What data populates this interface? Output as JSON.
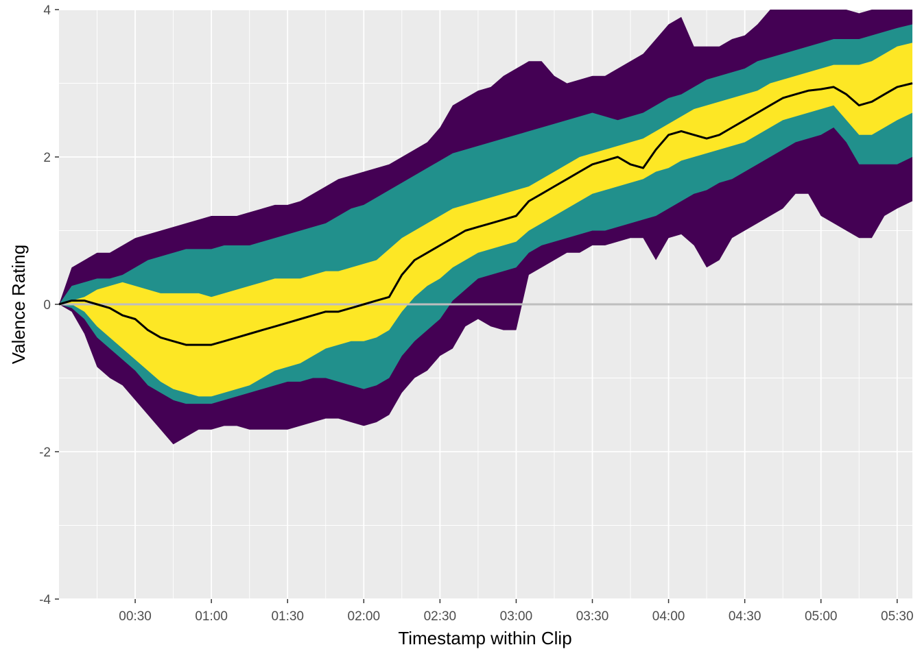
{
  "chart_data": {
    "type": "area",
    "xlabel": "Timestamp within Clip",
    "ylabel": "Valence Rating",
    "x_unit": "seconds",
    "xlim": [
      0,
      336
    ],
    "ylim": [
      -4,
      4
    ],
    "x_ticks": [
      {
        "value": 30,
        "label": "00:30"
      },
      {
        "value": 60,
        "label": "01:00"
      },
      {
        "value": 90,
        "label": "01:30"
      },
      {
        "value": 120,
        "label": "02:00"
      },
      {
        "value": 150,
        "label": "02:30"
      },
      {
        "value": 180,
        "label": "03:00"
      },
      {
        "value": 210,
        "label": "03:30"
      },
      {
        "value": 240,
        "label": "04:00"
      },
      {
        "value": 270,
        "label": "04:30"
      },
      {
        "value": 300,
        "label": "05:00"
      },
      {
        "value": 330,
        "label": "05:30"
      }
    ],
    "y_ticks": [
      {
        "value": -4,
        "label": "-4"
      },
      {
        "value": -2,
        "label": "-2"
      },
      {
        "value": 0,
        "label": "0"
      },
      {
        "value": 2,
        "label": "2"
      },
      {
        "value": 4,
        "label": "4"
      }
    ],
    "grid": true,
    "reference_line": {
      "y": 0,
      "color": "#bebebe"
    },
    "x": [
      0,
      5,
      10,
      15,
      20,
      25,
      30,
      35,
      40,
      45,
      50,
      55,
      60,
      65,
      70,
      75,
      80,
      85,
      90,
      95,
      100,
      105,
      110,
      115,
      120,
      125,
      130,
      135,
      140,
      145,
      150,
      155,
      160,
      165,
      170,
      175,
      180,
      185,
      190,
      195,
      200,
      205,
      210,
      215,
      220,
      225,
      230,
      235,
      240,
      245,
      250,
      255,
      260,
      265,
      270,
      275,
      280,
      285,
      290,
      295,
      300,
      305,
      310,
      315,
      320,
      325,
      330,
      336
    ],
    "bands": [
      {
        "name": "outer",
        "color": "#440154",
        "upper": [
          0,
          0.5,
          0.6,
          0.7,
          0.7,
          0.8,
          0.9,
          0.95,
          1.0,
          1.05,
          1.1,
          1.15,
          1.2,
          1.2,
          1.2,
          1.25,
          1.3,
          1.35,
          1.35,
          1.4,
          1.5,
          1.6,
          1.7,
          1.75,
          1.8,
          1.85,
          1.9,
          2.0,
          2.1,
          2.2,
          2.4,
          2.7,
          2.8,
          2.9,
          2.95,
          3.1,
          3.2,
          3.3,
          3.3,
          3.1,
          3.0,
          3.05,
          3.1,
          3.1,
          3.2,
          3.3,
          3.4,
          3.6,
          3.8,
          3.9,
          3.5,
          3.5,
          3.5,
          3.6,
          3.65,
          3.8,
          4.0,
          4.0,
          4.0,
          4.0,
          4.0,
          4.0,
          4.0,
          3.95,
          4.0,
          4.0,
          4.0,
          4.0
        ],
        "lower": [
          0,
          -0.1,
          -0.4,
          -0.85,
          -1.0,
          -1.1,
          -1.3,
          -1.5,
          -1.7,
          -1.9,
          -1.8,
          -1.7,
          -1.7,
          -1.65,
          -1.65,
          -1.7,
          -1.7,
          -1.7,
          -1.7,
          -1.65,
          -1.6,
          -1.55,
          -1.55,
          -1.6,
          -1.65,
          -1.6,
          -1.5,
          -1.2,
          -1.0,
          -0.9,
          -0.7,
          -0.6,
          -0.3,
          -0.2,
          -0.3,
          -0.35,
          -0.35,
          0.4,
          0.5,
          0.6,
          0.7,
          0.7,
          0.8,
          0.8,
          0.85,
          0.9,
          0.9,
          0.6,
          0.9,
          0.95,
          0.8,
          0.5,
          0.6,
          0.9,
          1.0,
          1.1,
          1.2,
          1.3,
          1.5,
          1.5,
          1.2,
          1.1,
          1.0,
          0.9,
          0.9,
          1.2,
          1.3,
          1.4
        ]
      },
      {
        "name": "middle",
        "color": "#21908c",
        "upper": [
          0,
          0.25,
          0.3,
          0.35,
          0.35,
          0.4,
          0.5,
          0.6,
          0.65,
          0.7,
          0.75,
          0.75,
          0.75,
          0.8,
          0.8,
          0.8,
          0.85,
          0.9,
          0.95,
          1.0,
          1.05,
          1.1,
          1.2,
          1.3,
          1.35,
          1.45,
          1.55,
          1.65,
          1.75,
          1.85,
          1.95,
          2.05,
          2.1,
          2.15,
          2.2,
          2.25,
          2.3,
          2.35,
          2.4,
          2.45,
          2.5,
          2.55,
          2.6,
          2.55,
          2.5,
          2.55,
          2.6,
          2.7,
          2.8,
          2.85,
          2.95,
          3.05,
          3.1,
          3.15,
          3.2,
          3.3,
          3.35,
          3.4,
          3.45,
          3.5,
          3.55,
          3.6,
          3.6,
          3.6,
          3.65,
          3.7,
          3.75,
          3.8
        ],
        "lower": [
          0,
          -0.05,
          -0.2,
          -0.45,
          -0.6,
          -0.75,
          -0.9,
          -1.1,
          -1.2,
          -1.3,
          -1.35,
          -1.35,
          -1.35,
          -1.3,
          -1.25,
          -1.2,
          -1.15,
          -1.1,
          -1.05,
          -1.05,
          -1.0,
          -1.0,
          -1.05,
          -1.1,
          -1.15,
          -1.1,
          -1.0,
          -0.7,
          -0.5,
          -0.35,
          -0.2,
          0.05,
          0.2,
          0.35,
          0.4,
          0.45,
          0.5,
          0.7,
          0.8,
          0.85,
          0.9,
          0.95,
          1.0,
          1.0,
          1.05,
          1.1,
          1.15,
          1.2,
          1.3,
          1.4,
          1.5,
          1.55,
          1.65,
          1.7,
          1.8,
          1.9,
          2.0,
          2.1,
          2.2,
          2.25,
          2.3,
          2.4,
          2.2,
          1.9,
          1.9,
          1.9,
          1.9,
          2.0
        ]
      },
      {
        "name": "inner",
        "color": "#fde725",
        "upper": [
          0,
          0.05,
          0.1,
          0.2,
          0.25,
          0.3,
          0.25,
          0.2,
          0.15,
          0.15,
          0.15,
          0.15,
          0.1,
          0.15,
          0.2,
          0.25,
          0.3,
          0.35,
          0.35,
          0.35,
          0.4,
          0.45,
          0.45,
          0.5,
          0.55,
          0.6,
          0.75,
          0.9,
          1.0,
          1.1,
          1.2,
          1.3,
          1.35,
          1.4,
          1.45,
          1.5,
          1.55,
          1.6,
          1.7,
          1.8,
          1.9,
          2.0,
          2.05,
          2.1,
          2.15,
          2.2,
          2.25,
          2.35,
          2.45,
          2.55,
          2.65,
          2.7,
          2.75,
          2.8,
          2.85,
          2.9,
          3.0,
          3.05,
          3.1,
          3.15,
          3.2,
          3.25,
          3.25,
          3.25,
          3.3,
          3.4,
          3.5,
          3.55
        ],
        "lower": [
          0,
          0.0,
          -0.1,
          -0.3,
          -0.45,
          -0.6,
          -0.75,
          -0.9,
          -1.05,
          -1.15,
          -1.2,
          -1.25,
          -1.25,
          -1.2,
          -1.15,
          -1.1,
          -1.0,
          -0.9,
          -0.85,
          -0.8,
          -0.7,
          -0.6,
          -0.55,
          -0.5,
          -0.5,
          -0.45,
          -0.35,
          -0.1,
          0.1,
          0.25,
          0.35,
          0.5,
          0.6,
          0.7,
          0.75,
          0.8,
          0.85,
          1.0,
          1.1,
          1.2,
          1.3,
          1.4,
          1.5,
          1.55,
          1.6,
          1.65,
          1.7,
          1.8,
          1.85,
          1.95,
          2.0,
          2.05,
          2.1,
          2.15,
          2.2,
          2.3,
          2.4,
          2.5,
          2.55,
          2.6,
          2.65,
          2.7,
          2.5,
          2.3,
          2.3,
          2.4,
          2.5,
          2.6
        ]
      }
    ],
    "series": [
      {
        "color": "#000000",
        "values": [
          0,
          0.05,
          0.05,
          0.0,
          -0.05,
          -0.15,
          -0.2,
          -0.35,
          -0.45,
          -0.5,
          -0.55,
          -0.55,
          -0.55,
          -0.5,
          -0.45,
          -0.4,
          -0.35,
          -0.3,
          -0.25,
          -0.2,
          -0.15,
          -0.1,
          -0.1,
          -0.05,
          0.0,
          0.05,
          0.1,
          0.4,
          0.6,
          0.7,
          0.8,
          0.9,
          1.0,
          1.05,
          1.1,
          1.15,
          1.2,
          1.4,
          1.5,
          1.6,
          1.7,
          1.8,
          1.9,
          1.95,
          2.0,
          1.9,
          1.85,
          2.1,
          2.3,
          2.35,
          2.3,
          2.25,
          2.3,
          2.4,
          2.5,
          2.6,
          2.7,
          2.8,
          2.85,
          2.9,
          2.92,
          2.95,
          2.85,
          2.7,
          2.75,
          2.85,
          2.95,
          3.0
        ]
      }
    ]
  }
}
